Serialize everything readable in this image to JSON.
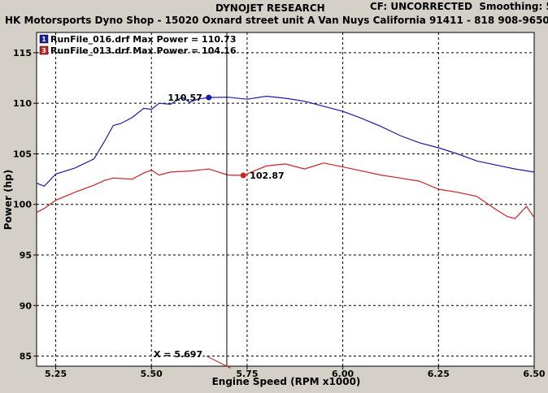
{
  "header": {
    "research": "DYNOJET RESEARCH",
    "cf_label": "CF: UNCORRECTED",
    "smoothing_label": "Smoothing: 5",
    "shop": "HK Motorsports Dyno Shop - 15020 Oxnard street unit A Van Nuys California 91411 - 818 908-9650"
  },
  "colors": {
    "series1": "#1a1aa8",
    "series2": "#cc2222",
    "plot_bg": "#ffffff",
    "frame_bg": "#d4d0c8"
  },
  "chart_data": {
    "type": "line",
    "xlabel": "Engine Speed (RPM x1000)",
    "ylabel": "Power (hp)",
    "xlim": [
      5.2,
      6.5
    ],
    "ylim": [
      84,
      117
    ],
    "xticks": [
      "5.25",
      "5.50",
      "5.75",
      "6.00",
      "6.25",
      "6.50"
    ],
    "xtick_values": [
      5.25,
      5.5,
      5.75,
      6.0,
      6.25,
      6.5
    ],
    "yticks": [
      "85",
      "90",
      "95",
      "100",
      "105",
      "110",
      "115"
    ],
    "ytick_values": [
      85,
      90,
      95,
      100,
      105,
      110,
      115
    ],
    "grid": true,
    "legend_position": "top-left",
    "series": [
      {
        "name": "RunFile_016.drf Max Power = 110.73",
        "legend_number": "1",
        "color": "#1a1aa8",
        "x": [
          5.2,
          5.22,
          5.25,
          5.3,
          5.35,
          5.38,
          5.4,
          5.42,
          5.45,
          5.48,
          5.5,
          5.52,
          5.55,
          5.58,
          5.6,
          5.62,
          5.65,
          5.7,
          5.75,
          5.8,
          5.85,
          5.9,
          5.95,
          6.0,
          6.05,
          6.1,
          6.15,
          6.2,
          6.25,
          6.3,
          6.35,
          6.4,
          6.45,
          6.5
        ],
        "y": [
          102.1,
          101.8,
          103.0,
          103.6,
          104.5,
          106.4,
          107.8,
          108.0,
          108.6,
          109.5,
          109.4,
          110.0,
          109.9,
          110.6,
          110.1,
          110.4,
          110.57,
          110.6,
          110.4,
          110.7,
          110.5,
          110.2,
          109.7,
          109.2,
          108.5,
          107.7,
          106.8,
          106.1,
          105.6,
          105.0,
          104.3,
          103.9,
          103.5,
          103.2
        ]
      },
      {
        "name": "RunFile_013.drf Max Power = 104.16",
        "legend_number": "3",
        "color": "#cc2222",
        "x": [
          5.2,
          5.22,
          5.25,
          5.3,
          5.35,
          5.38,
          5.4,
          5.45,
          5.48,
          5.5,
          5.52,
          5.55,
          5.6,
          5.65,
          5.7,
          5.74,
          5.8,
          5.85,
          5.9,
          5.95,
          6.0,
          6.05,
          6.1,
          6.15,
          6.2,
          6.25,
          6.3,
          6.35,
          6.4,
          6.43,
          6.45,
          6.48,
          6.5
        ],
        "y": [
          99.2,
          99.6,
          100.4,
          101.2,
          101.9,
          102.4,
          102.6,
          102.5,
          103.1,
          103.4,
          102.9,
          103.2,
          103.3,
          103.5,
          102.9,
          102.87,
          103.8,
          104.0,
          103.5,
          104.1,
          103.7,
          103.3,
          102.9,
          102.6,
          102.3,
          101.5,
          101.2,
          100.8,
          99.5,
          98.8,
          98.6,
          99.8,
          98.7
        ]
      }
    ],
    "markers": [
      {
        "series": 0,
        "x": 5.65,
        "y": 110.57,
        "label": "110.57"
      },
      {
        "series": 1,
        "x": 5.74,
        "y": 102.87,
        "label": "102.87"
      }
    ],
    "cursor": {
      "x": 5.697,
      "label": "X = 5.697"
    }
  }
}
